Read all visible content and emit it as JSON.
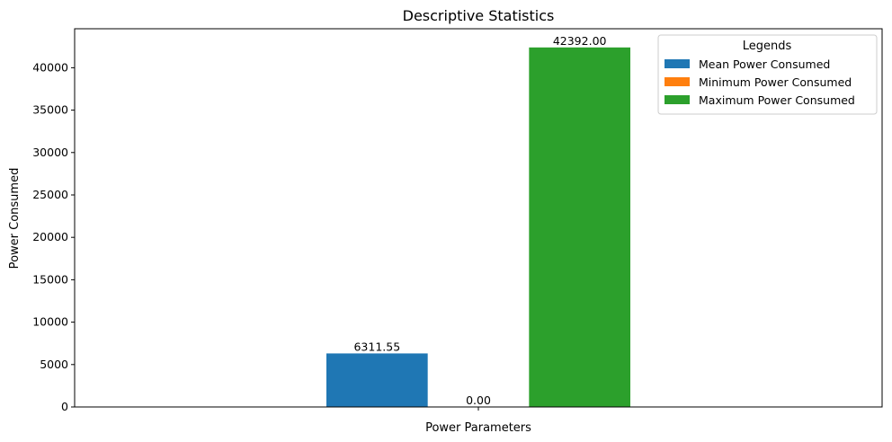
{
  "chart_data": {
    "type": "bar",
    "title": "Descriptive Statistics",
    "xlabel": "Power Parameters",
    "ylabel": "Power Consumed",
    "categories": [
      ""
    ],
    "ylim": [
      0,
      44596
    ],
    "yticks": [
      0,
      5000,
      10000,
      15000,
      20000,
      25000,
      30000,
      35000,
      40000
    ],
    "grid": false,
    "legend": {
      "title": "Legends",
      "position": "top-right"
    },
    "series": [
      {
        "name": "Mean Power Consumed",
        "values": [
          6311.55
        ],
        "label": "6311.55",
        "color": "#1f77b4"
      },
      {
        "name": "Minimum Power Consumed",
        "values": [
          0.0
        ],
        "label": "0.00",
        "color": "#ff7f0e"
      },
      {
        "name": "Maximum Power Consumed",
        "values": [
          42392.0
        ],
        "label": "42392.00",
        "color": "#2ca02c"
      }
    ]
  }
}
